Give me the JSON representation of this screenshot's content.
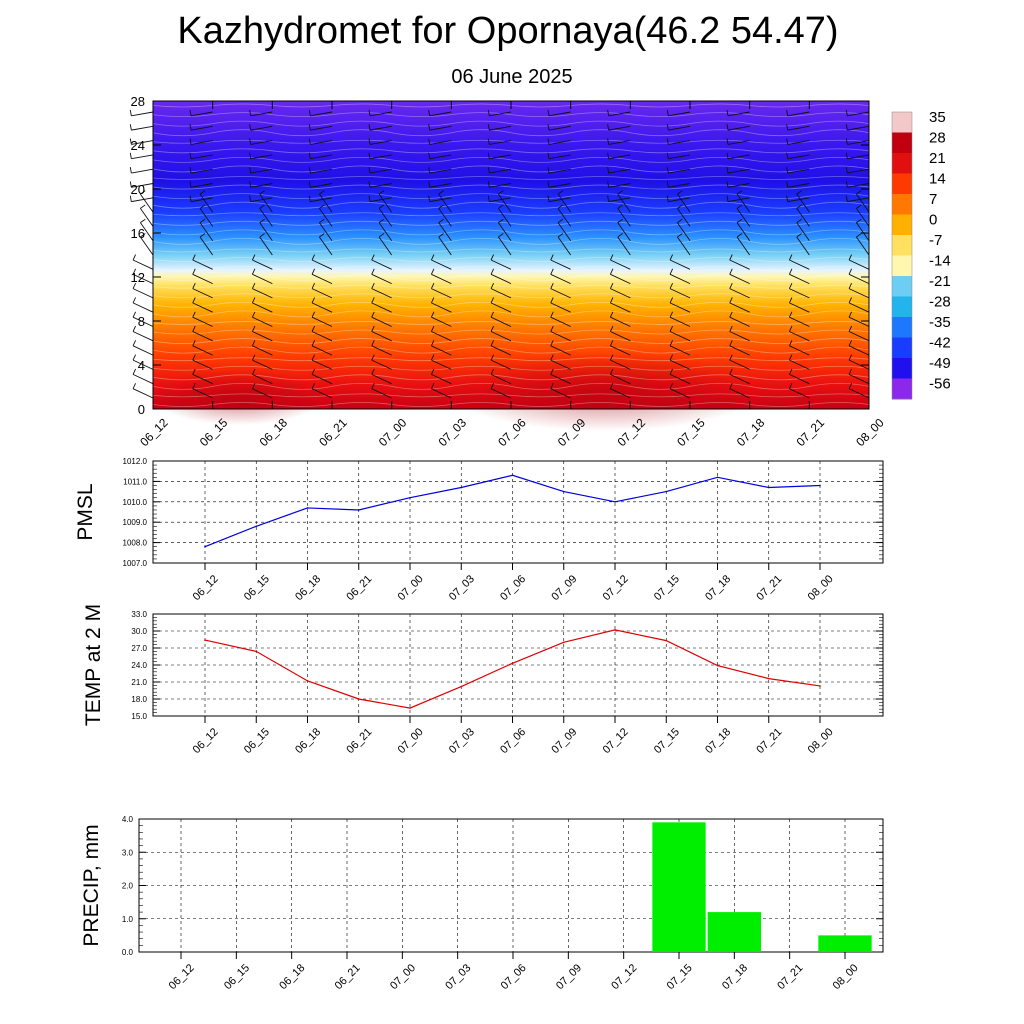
{
  "title": "Kazhydromet for Opornaya(46.2 54.47)",
  "subtitle": "06 June 2025",
  "chart_data": [
    {
      "type": "heatmap",
      "title": "",
      "xlabel": "",
      "ylabel": "",
      "x": [
        "06_12",
        "06_15",
        "06_18",
        "06_21",
        "07_00",
        "07_03",
        "07_06",
        "07_09",
        "07_12",
        "07_15",
        "07_18",
        "07_21",
        "08_00"
      ],
      "yticks": [
        0,
        4,
        8,
        12,
        16,
        20,
        24,
        28
      ],
      "ylim": [
        0,
        28
      ],
      "temperature_by_level": [
        {
          "level": 0,
          "value": 30
        },
        {
          "level": 4,
          "value": 24
        },
        {
          "level": 8,
          "value": 12
        },
        {
          "level": 12,
          "value": 2
        },
        {
          "level": 13,
          "value": -5
        },
        {
          "level": 16,
          "value": -25
        },
        {
          "level": 20,
          "value": -48
        },
        {
          "level": 24,
          "value": -58
        },
        {
          "level": 28,
          "value": -60
        }
      ],
      "colorbar": {
        "labels": [
          "35",
          "28",
          "21",
          "14",
          "7",
          "0",
          "-7",
          "-14",
          "-21",
          "-28",
          "-35",
          "-42",
          "-49",
          "-56"
        ],
        "colors": [
          "#f2c8c8",
          "#c00010",
          "#e01010",
          "#ff3a00",
          "#ff7800",
          "#ffb000",
          "#ffe060",
          "#fff6b0",
          "#6ecdf2",
          "#22b4ec",
          "#1e78ff",
          "#1a3cff",
          "#2010ee",
          "#8c28ec"
        ]
      },
      "wind_barbs": true
    },
    {
      "type": "line",
      "title": "",
      "xlabel": "",
      "ylabel": "PMSL",
      "x": [
        "06_12",
        "06_15",
        "06_18",
        "06_21",
        "07_00",
        "07_03",
        "07_06",
        "07_09",
        "07_12",
        "07_15",
        "07_18",
        "07_21",
        "08_00"
      ],
      "yticks": [
        "1007.0",
        "1008.0",
        "1009.0",
        "1010.0",
        "1011.0",
        "1012.0"
      ],
      "ylim": [
        1007.0,
        1012.0
      ],
      "color": "#0000dd",
      "values": [
        1007.8,
        1008.8,
        1009.7,
        1009.6,
        1010.2,
        1010.7,
        1011.3,
        1010.5,
        1010.0,
        1010.5,
        1011.2,
        1010.7,
        1010.8
      ]
    },
    {
      "type": "line",
      "title": "",
      "xlabel": "",
      "ylabel": "TEMP at 2 M",
      "x": [
        "06_12",
        "06_15",
        "06_18",
        "06_21",
        "07_00",
        "07_03",
        "07_06",
        "07_09",
        "07_12",
        "07_15",
        "07_18",
        "07_21",
        "08_00"
      ],
      "yticks": [
        "15.0",
        "18.0",
        "21.0",
        "24.0",
        "27.0",
        "30.0",
        "33.0"
      ],
      "ylim": [
        15.0,
        33.0
      ],
      "color": "#dd0000",
      "values": [
        28.4,
        26.4,
        21.2,
        18.0,
        16.4,
        20.2,
        24.3,
        28.0,
        30.2,
        28.3,
        23.9,
        21.6,
        20.3
      ]
    },
    {
      "type": "bar",
      "title": "",
      "xlabel": "",
      "ylabel": "PRECIP, mm",
      "categories": [
        "06_12",
        "06_15",
        "06_18",
        "06_21",
        "07_00",
        "07_03",
        "07_06",
        "07_09",
        "07_12",
        "07_15",
        "07_18",
        "07_21",
        "08_00"
      ],
      "yticks": [
        "0.0",
        "1.0",
        "2.0",
        "3.0",
        "4.0"
      ],
      "ylim": [
        0.0,
        4.0
      ],
      "color": "#00ee00",
      "values": [
        0,
        0,
        0,
        0,
        0,
        0,
        0,
        0,
        0,
        3.9,
        1.2,
        0,
        0.5
      ]
    }
  ]
}
